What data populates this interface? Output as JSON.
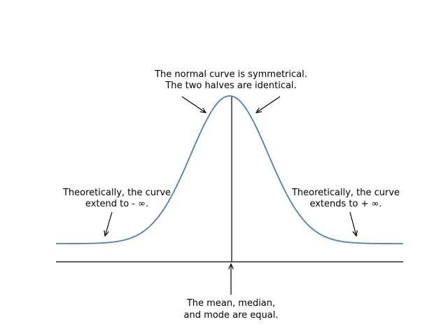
{
  "chart_data": {
    "type": "line",
    "title": "",
    "xlabel": "",
    "ylabel": "",
    "grid": false,
    "legend": "none",
    "curve": {
      "kind": "normal",
      "mean": 0,
      "sd": 1,
      "x_range": [
        -4.5,
        4.5
      ],
      "tails_asymptote": true
    }
  },
  "annotations": {
    "symmetric": {
      "line1": "The normal curve is symmetrical.",
      "line2": "The two halves are identical."
    },
    "left_tail": {
      "line1": "Theoretically, the curve",
      "line2": "extend to - ∞."
    },
    "right_tail": {
      "line1": "Theoretically, the curve",
      "line2": "extends to + ∞."
    },
    "center": {
      "line1": "The mean, median,",
      "line2": "and mode are equal."
    }
  },
  "colors": {
    "curve": "#4682b4",
    "axis": "#000000",
    "text": "#000000",
    "background": "#ffffff"
  }
}
